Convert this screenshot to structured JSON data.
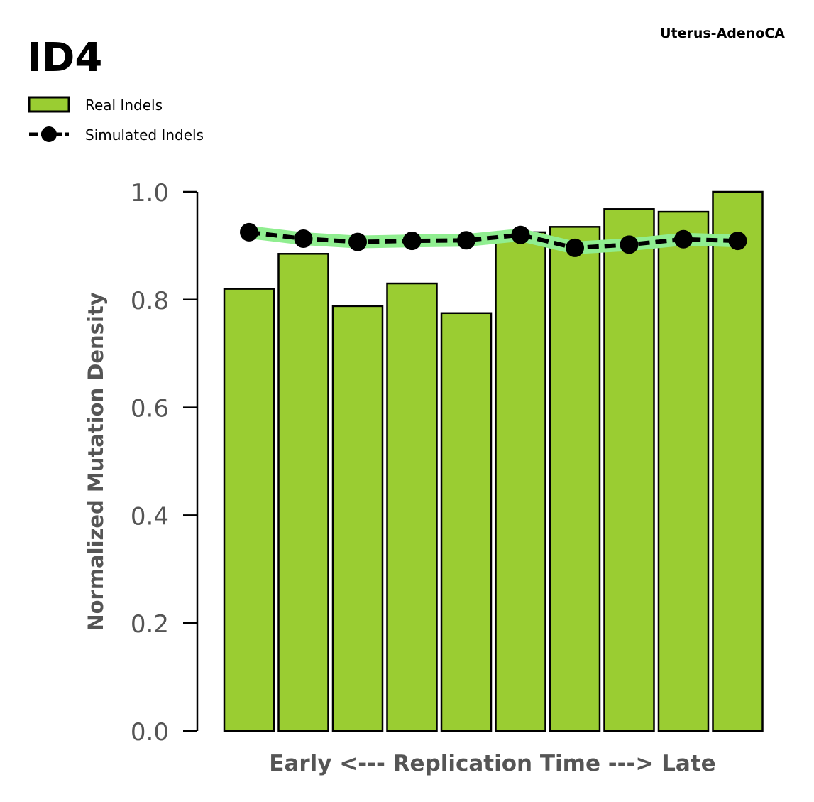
{
  "chart_data": {
    "type": "bar",
    "title": "ID4",
    "subtitle": "Uterus-AdenoCA",
    "xlabel": "Early <--- Replication Time ---> Late",
    "ylabel": "Normalized Mutation Density",
    "ylim": [
      0,
      1.0
    ],
    "yticks": [
      "0.0",
      "0.2",
      "0.4",
      "0.6",
      "0.8",
      "1.0"
    ],
    "grid": false,
    "legend_placement": "top-left",
    "series": [
      {
        "name": "Real Indels",
        "type": "bar",
        "color": "#9ACD32",
        "values": [
          0.82,
          0.885,
          0.788,
          0.83,
          0.775,
          0.925,
          0.935,
          0.968,
          0.963,
          1.0
        ]
      },
      {
        "name": "Simulated Indels",
        "type": "line",
        "color": "#000000",
        "band_color": "#90EE90",
        "values": [
          0.925,
          0.913,
          0.907,
          0.909,
          0.91,
          0.92,
          0.896,
          0.902,
          0.912,
          0.909
        ]
      }
    ]
  }
}
